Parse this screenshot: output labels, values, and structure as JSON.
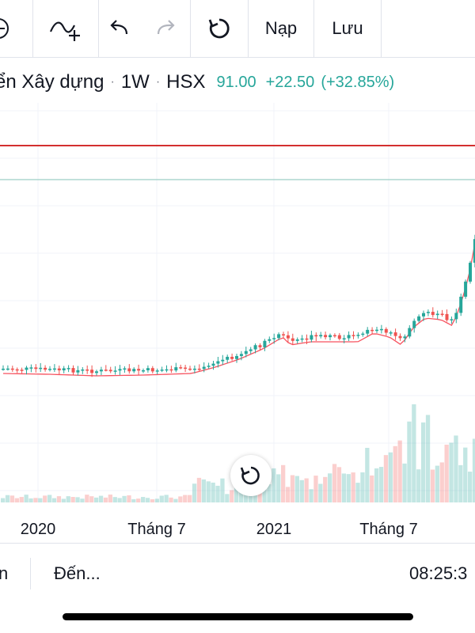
{
  "toolbar": {
    "items": [
      {
        "icon": "indicators-add-icon"
      },
      {
        "icon": "undo-icon"
      },
      {
        "icon": "redo-icon"
      },
      {
        "icon": "refresh-icon"
      }
    ],
    "load_label": "Nạp",
    "save_label": "Lưu"
  },
  "legend": {
    "symbol_name": "ển Xây dựng",
    "separator": "·",
    "interval": "1W",
    "exchange": "HSX",
    "price": "91.00",
    "change": "+22.50",
    "change_percent": "(+32.85%)",
    "colors": {
      "up": "#26a69a",
      "down": "#ef5350",
      "ma": "#f7525f"
    }
  },
  "chart_data": {
    "type": "candlestick",
    "x_labels": [
      "2020",
      "Tháng 7",
      "2021",
      "Tháng 7"
    ],
    "horizontal_lines": [
      {
        "color": "#d32f2f"
      },
      {
        "color": "#9ccfc5"
      }
    ],
    "grid": true
  },
  "bottom_bar": {
    "date_range_partial": "n",
    "goto_label": "Đến...",
    "clock": "08:25:3"
  }
}
